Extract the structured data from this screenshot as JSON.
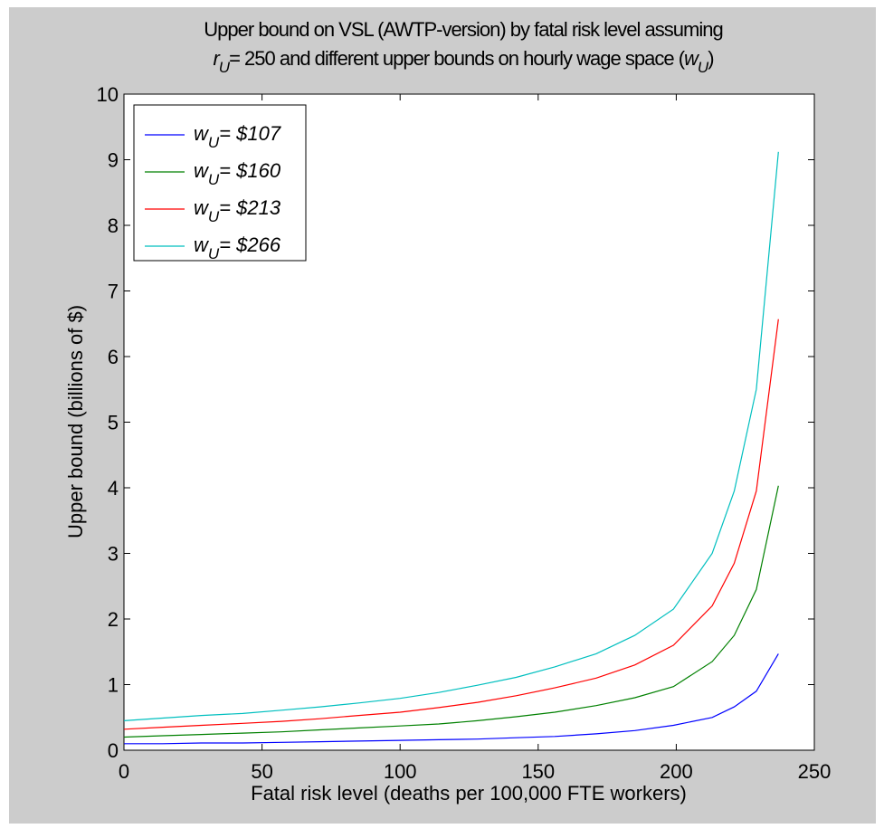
{
  "chart_data": {
    "type": "line",
    "title_line1": "Upper bound on VSL (AWTP-version) by fatal risk level assuming",
    "title_line2": {
      "var": "r",
      "sub": "U",
      "text": "= 250 and different upper bounds on hourly wage space (",
      "var2": "w",
      "sub2": "U",
      "close": ")"
    },
    "xlabel": "Fatal risk level (deaths per 100,000 FTE workers)",
    "ylabel": "Upper bound (billions of $)",
    "xlim": [
      0,
      250
    ],
    "ylim": [
      0,
      10
    ],
    "xticks": [
      0,
      50,
      100,
      150,
      200,
      250
    ],
    "yticks": [
      0,
      1,
      2,
      3,
      4,
      5,
      6,
      7,
      8,
      9,
      10
    ],
    "xtick_labels": [
      "0",
      "50",
      "100",
      "150",
      "200",
      "250"
    ],
    "ytick_labels": [
      "0",
      "1",
      "2",
      "3",
      "4",
      "5",
      "6",
      "7",
      "8",
      "9",
      "10"
    ],
    "grid": false,
    "legend_position": "top-left",
    "x": [
      0,
      14,
      28,
      43,
      57,
      71,
      85,
      100,
      114,
      128,
      142,
      156,
      171,
      185,
      199,
      213,
      221,
      229,
      237
    ],
    "series": [
      {
        "name": "$107",
        "legend_var": "w",
        "legend_sub": "U",
        "legend_text": "= $107",
        "color": "#0000ff",
        "values": [
          0.1,
          0.1,
          0.11,
          0.11,
          0.12,
          0.13,
          0.14,
          0.15,
          0.16,
          0.17,
          0.19,
          0.21,
          0.25,
          0.3,
          0.38,
          0.5,
          0.66,
          0.9,
          1.47
        ]
      },
      {
        "name": "$160",
        "legend_var": "w",
        "legend_sub": "U",
        "legend_text": "= $160",
        "color": "#008000",
        "values": [
          0.2,
          0.22,
          0.24,
          0.26,
          0.28,
          0.31,
          0.34,
          0.37,
          0.4,
          0.45,
          0.51,
          0.58,
          0.68,
          0.8,
          0.97,
          1.35,
          1.75,
          2.45,
          4.03
        ]
      },
      {
        "name": "$213",
        "legend_var": "w",
        "legend_sub": "U",
        "legend_text": "= $213",
        "color": "#ff0000",
        "values": [
          0.32,
          0.35,
          0.38,
          0.41,
          0.44,
          0.48,
          0.53,
          0.58,
          0.65,
          0.73,
          0.83,
          0.95,
          1.1,
          1.3,
          1.6,
          2.2,
          2.85,
          3.95,
          6.57
        ]
      },
      {
        "name": "$266",
        "legend_var": "w",
        "legend_sub": "U",
        "legend_text": "= $266",
        "color": "#00bfbf",
        "values": [
          0.45,
          0.49,
          0.53,
          0.56,
          0.61,
          0.66,
          0.72,
          0.79,
          0.88,
          0.99,
          1.11,
          1.27,
          1.47,
          1.75,
          2.15,
          3.0,
          3.95,
          5.5,
          9.12
        ]
      }
    ]
  }
}
